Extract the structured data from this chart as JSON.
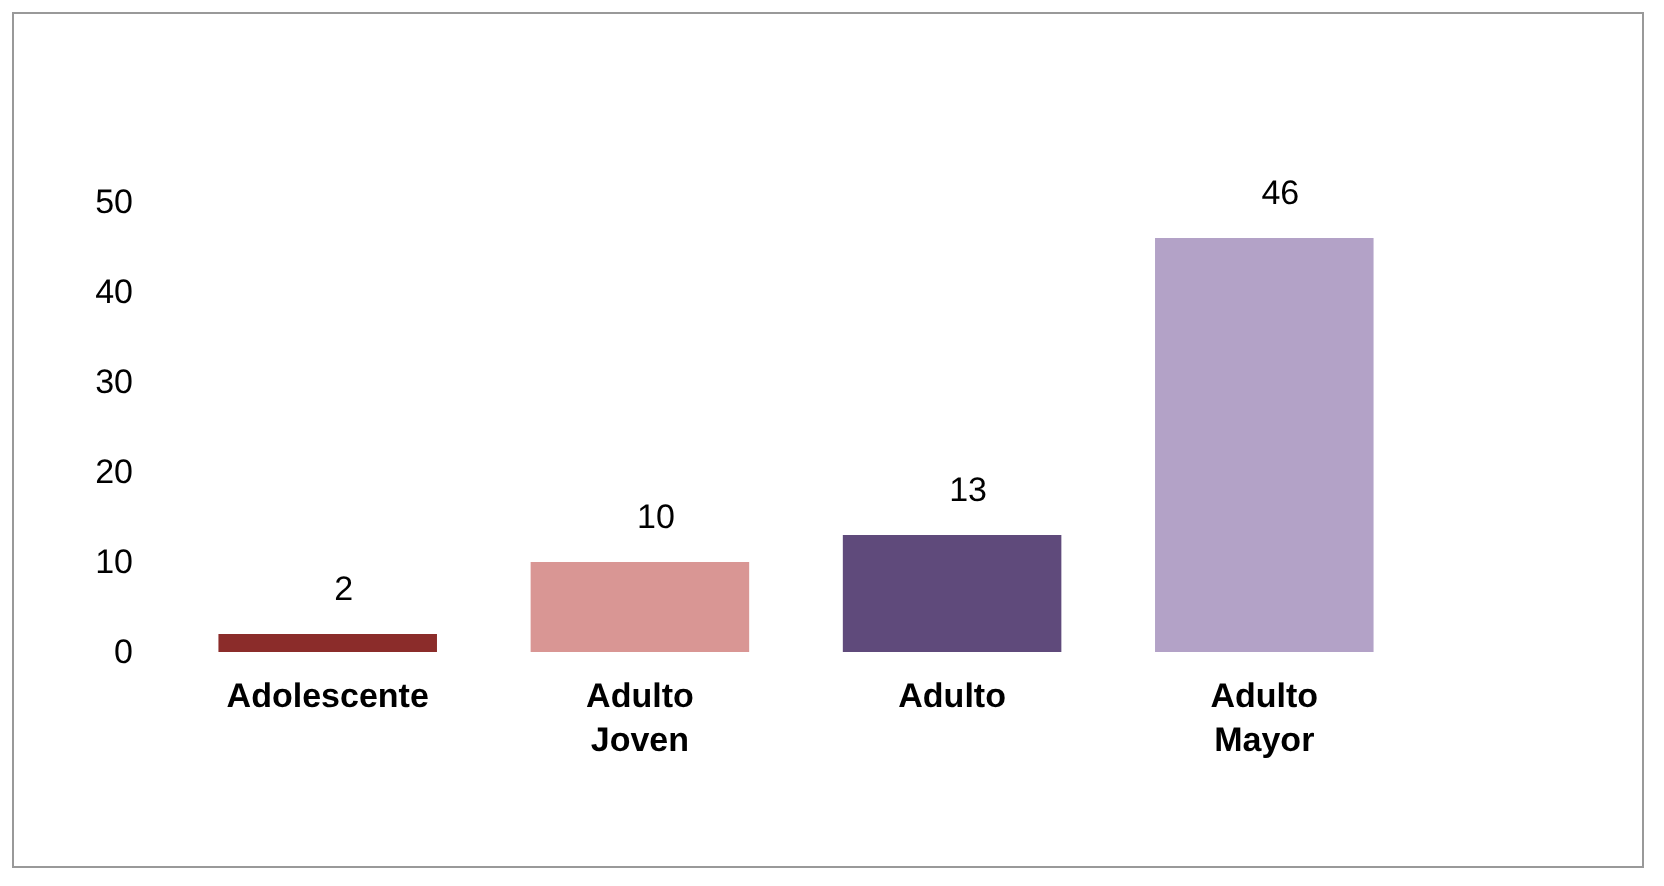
{
  "chart_data": {
    "type": "bar",
    "categories": [
      "Adolescente",
      "Adulto Joven",
      "Adulto",
      "Adulto Mayor"
    ],
    "values": [
      2,
      10,
      13,
      46
    ],
    "colors": [
      "#8b2c2a",
      "#d99694",
      "#5f4a7b",
      "#b3a2c7"
    ],
    "ylim": [
      0,
      50
    ],
    "yticks": [
      0,
      10,
      20,
      30,
      40,
      50
    ],
    "data_labels": true,
    "grid": false
  }
}
